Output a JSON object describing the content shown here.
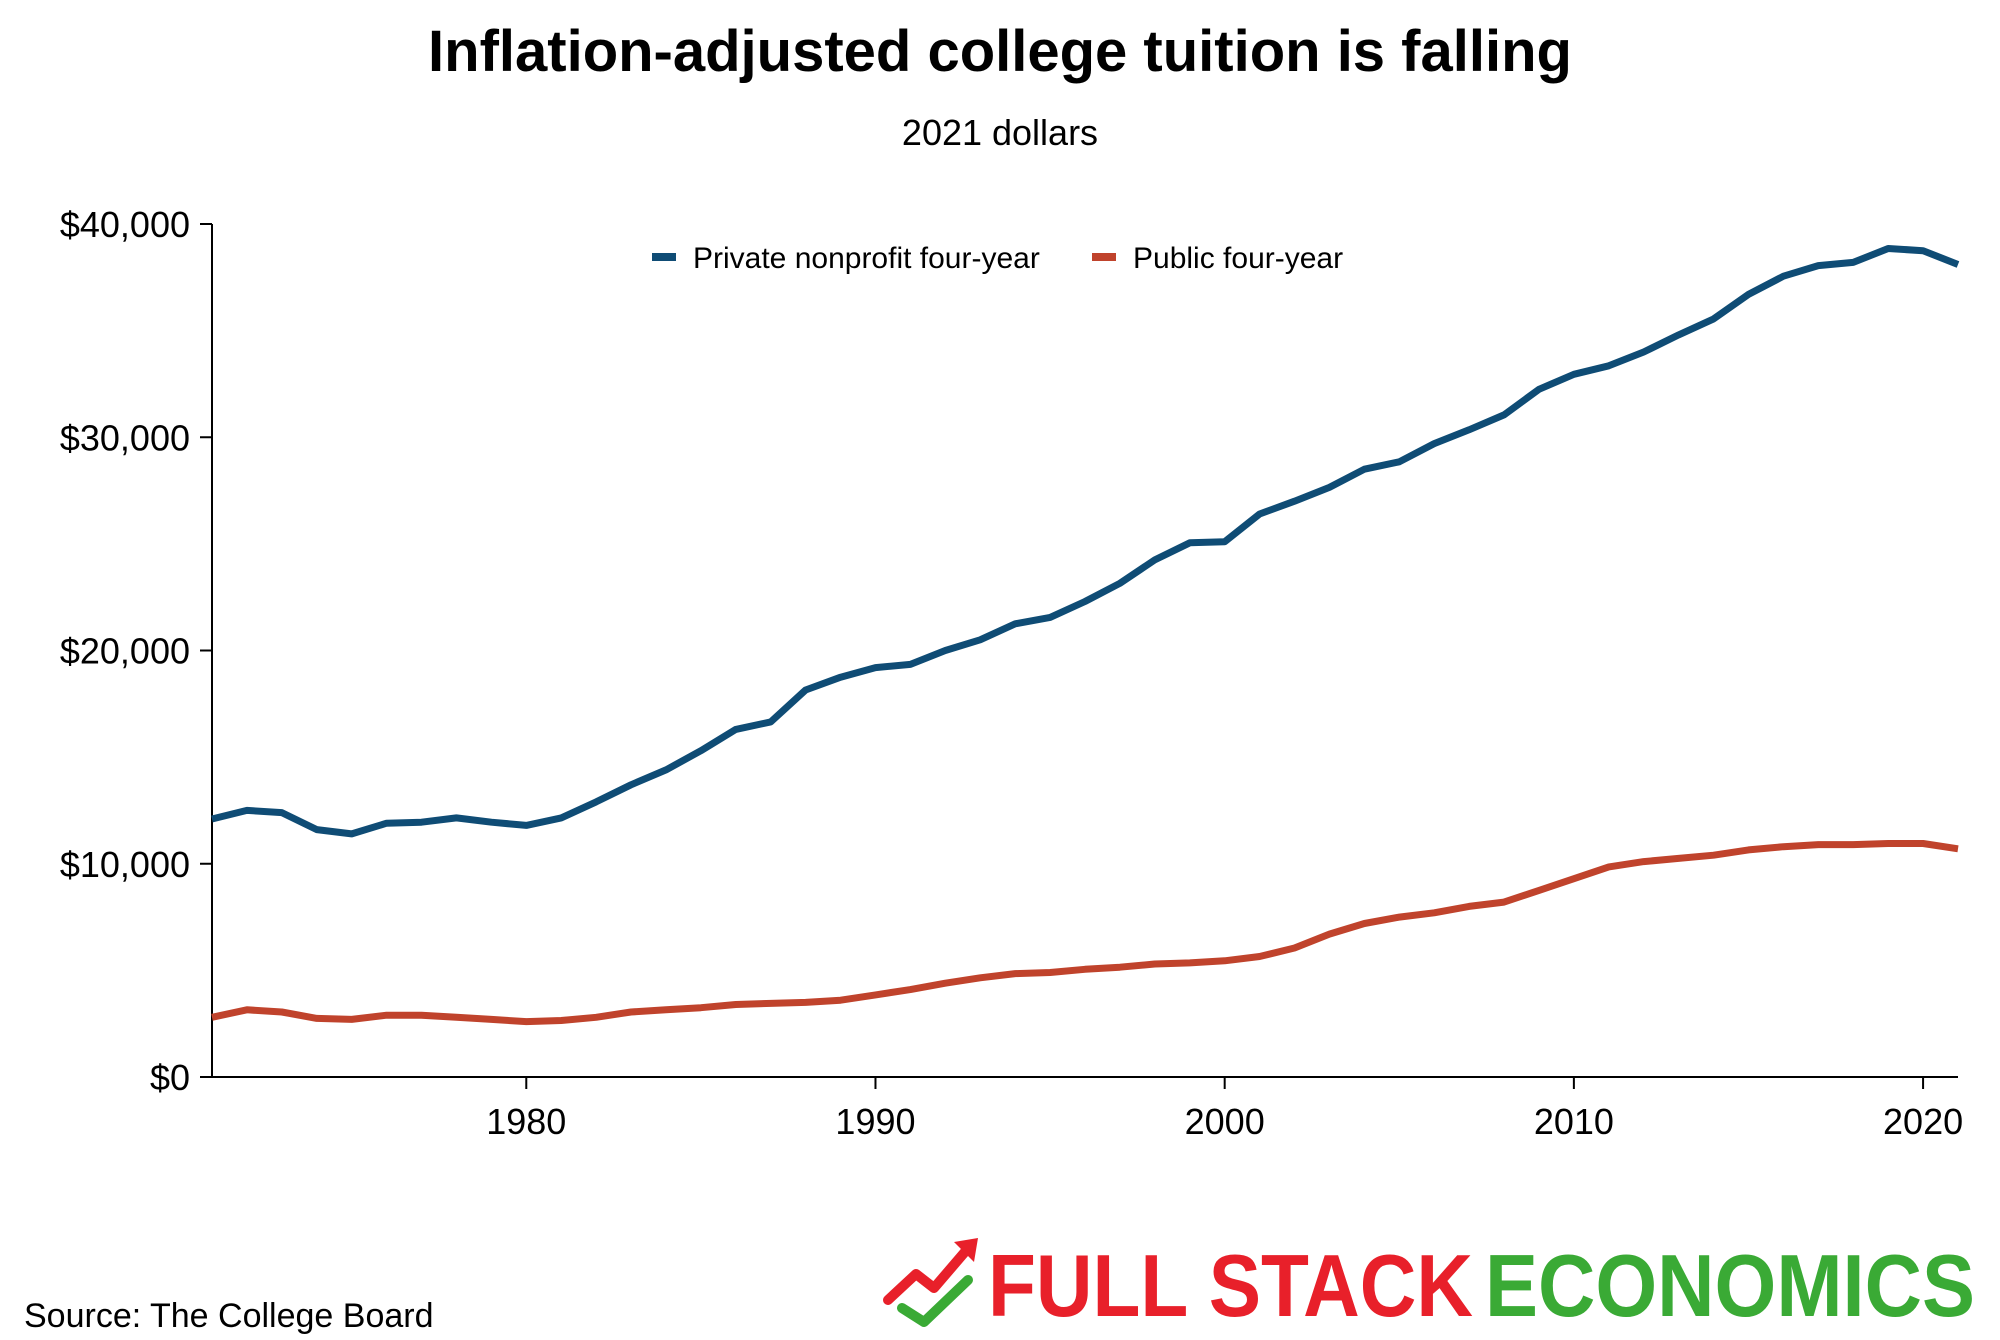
{
  "chart_data": {
    "type": "line",
    "title": "Inflation-adjusted college tuition is falling",
    "subtitle": "2021 dollars",
    "xlabel": "",
    "ylabel": "",
    "xlim": [
      1971,
      2021
    ],
    "ylim": [
      0,
      40000
    ],
    "x_ticks": [
      1980,
      1990,
      2000,
      2010,
      2020
    ],
    "x_tick_labels": [
      "1980",
      "1990",
      "2000",
      "2010",
      "2020"
    ],
    "y_ticks": [
      0,
      10000,
      20000,
      30000,
      40000
    ],
    "y_tick_labels": [
      "$0",
      "$10,000",
      "$20,000",
      "$30,000",
      "$40,000"
    ],
    "grid": false,
    "legend_position": "top-center",
    "x": [
      1971,
      1972,
      1973,
      1974,
      1975,
      1976,
      1977,
      1978,
      1979,
      1980,
      1981,
      1982,
      1983,
      1984,
      1985,
      1986,
      1987,
      1988,
      1989,
      1990,
      1991,
      1992,
      1993,
      1994,
      1995,
      1996,
      1997,
      1998,
      1999,
      2000,
      2001,
      2002,
      2003,
      2004,
      2005,
      2006,
      2007,
      2008,
      2009,
      2010,
      2011,
      2012,
      2013,
      2014,
      2015,
      2016,
      2017,
      2018,
      2019,
      2020,
      2021
    ],
    "series": [
      {
        "name": "Private nonprofit four-year",
        "color": "#0f4c75",
        "values": [
          12100,
          12500,
          12400,
          11600,
          11400,
          11900,
          11950,
          12150,
          11950,
          11800,
          12150,
          12900,
          13700,
          14400,
          15300,
          16300,
          16650,
          18150,
          18750,
          19200,
          19350,
          20000,
          20500,
          21250,
          21550,
          22300,
          23150,
          24250,
          25050,
          25100,
          26400,
          27000,
          27650,
          28500,
          28850,
          29700,
          30350,
          31050,
          32250,
          32950,
          33350,
          34000,
          34800,
          35550,
          36700,
          37550,
          38050,
          38200,
          38850,
          38750,
          38100
        ]
      },
      {
        "name": "Public four-year",
        "color": "#c0432c",
        "values": [
          2800,
          3150,
          3050,
          2750,
          2700,
          2900,
          2900,
          2800,
          2700,
          2600,
          2650,
          2800,
          3050,
          3150,
          3250,
          3400,
          3450,
          3500,
          3600,
          3850,
          4100,
          4400,
          4650,
          4850,
          4900,
          5050,
          5150,
          5300,
          5350,
          5450,
          5650,
          6050,
          6700,
          7200,
          7500,
          7700,
          8000,
          8200,
          8750,
          9300,
          9850,
          10100,
          10250,
          10400,
          10650,
          10800,
          10900,
          10900,
          10950,
          10950,
          10700
        ]
      }
    ]
  },
  "source": "Source:  The College Board",
  "brand": {
    "word1": "FULL STACK",
    "word2": "ECONOMICS",
    "red": "#e8202a",
    "green": "#3aaa35",
    "icon": "trend-arrow-check-icon"
  }
}
